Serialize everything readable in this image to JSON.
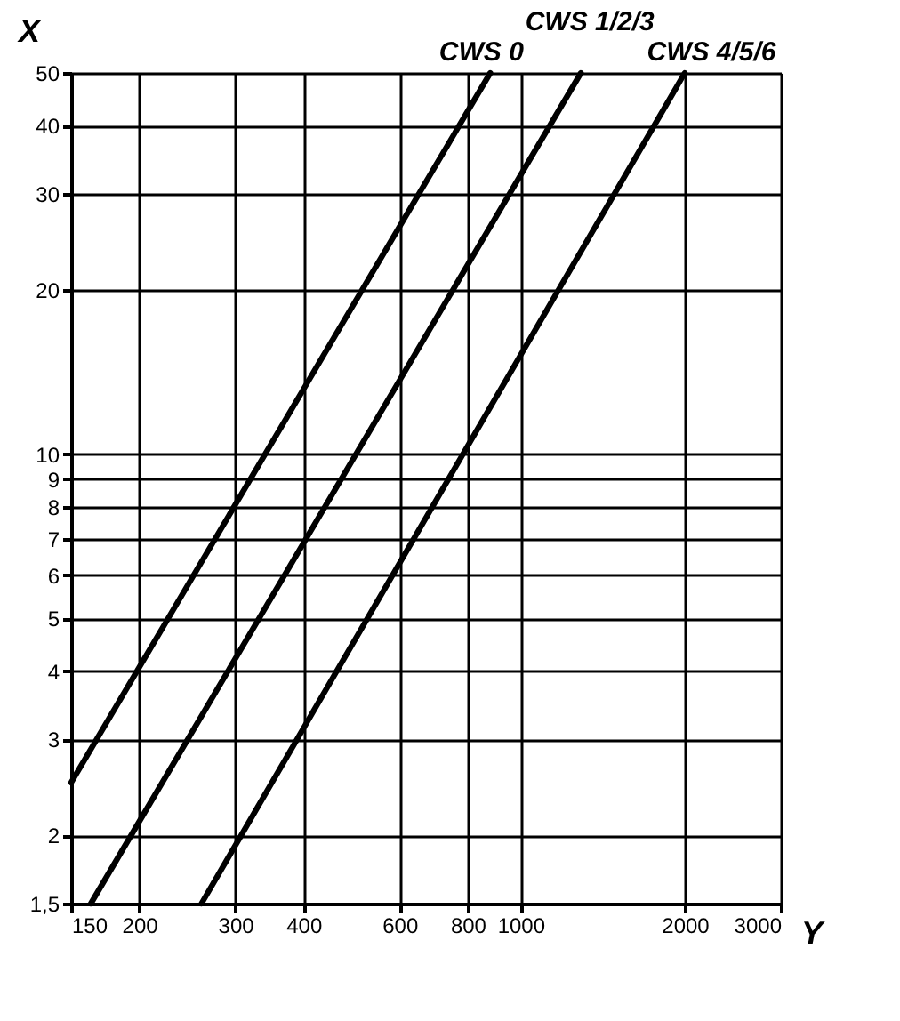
{
  "chart_data": {
    "type": "line",
    "xlabel": "Y",
    "ylabel": "X",
    "log": "xy",
    "grid": true,
    "line_style": "solid",
    "marker": "none",
    "xlim": [
      150,
      3000
    ],
    "ylim": [
      1.5,
      50
    ],
    "xticks": [
      150,
      200,
      300,
      400,
      600,
      800,
      1000,
      2000,
      3000
    ],
    "yticks": [
      {
        "value": 1.5,
        "label": "1,5"
      },
      2,
      3,
      4,
      5,
      6,
      7,
      8,
      9,
      10,
      20,
      30,
      40,
      50
    ],
    "series": [
      {
        "name": "CWS 0",
        "color": "#000000",
        "x": [
          150,
          880
        ],
        "values": [
          2.5,
          50
        ]
      },
      {
        "name": "CWS 1/2/3",
        "color": "#000000",
        "x": [
          163,
          1290
        ],
        "values": [
          1.5,
          50
        ]
      },
      {
        "name": "CWS 4/5/6",
        "color": "#000000",
        "x": [
          260,
          2000
        ],
        "values": [
          1.5,
          50
        ]
      }
    ]
  }
}
